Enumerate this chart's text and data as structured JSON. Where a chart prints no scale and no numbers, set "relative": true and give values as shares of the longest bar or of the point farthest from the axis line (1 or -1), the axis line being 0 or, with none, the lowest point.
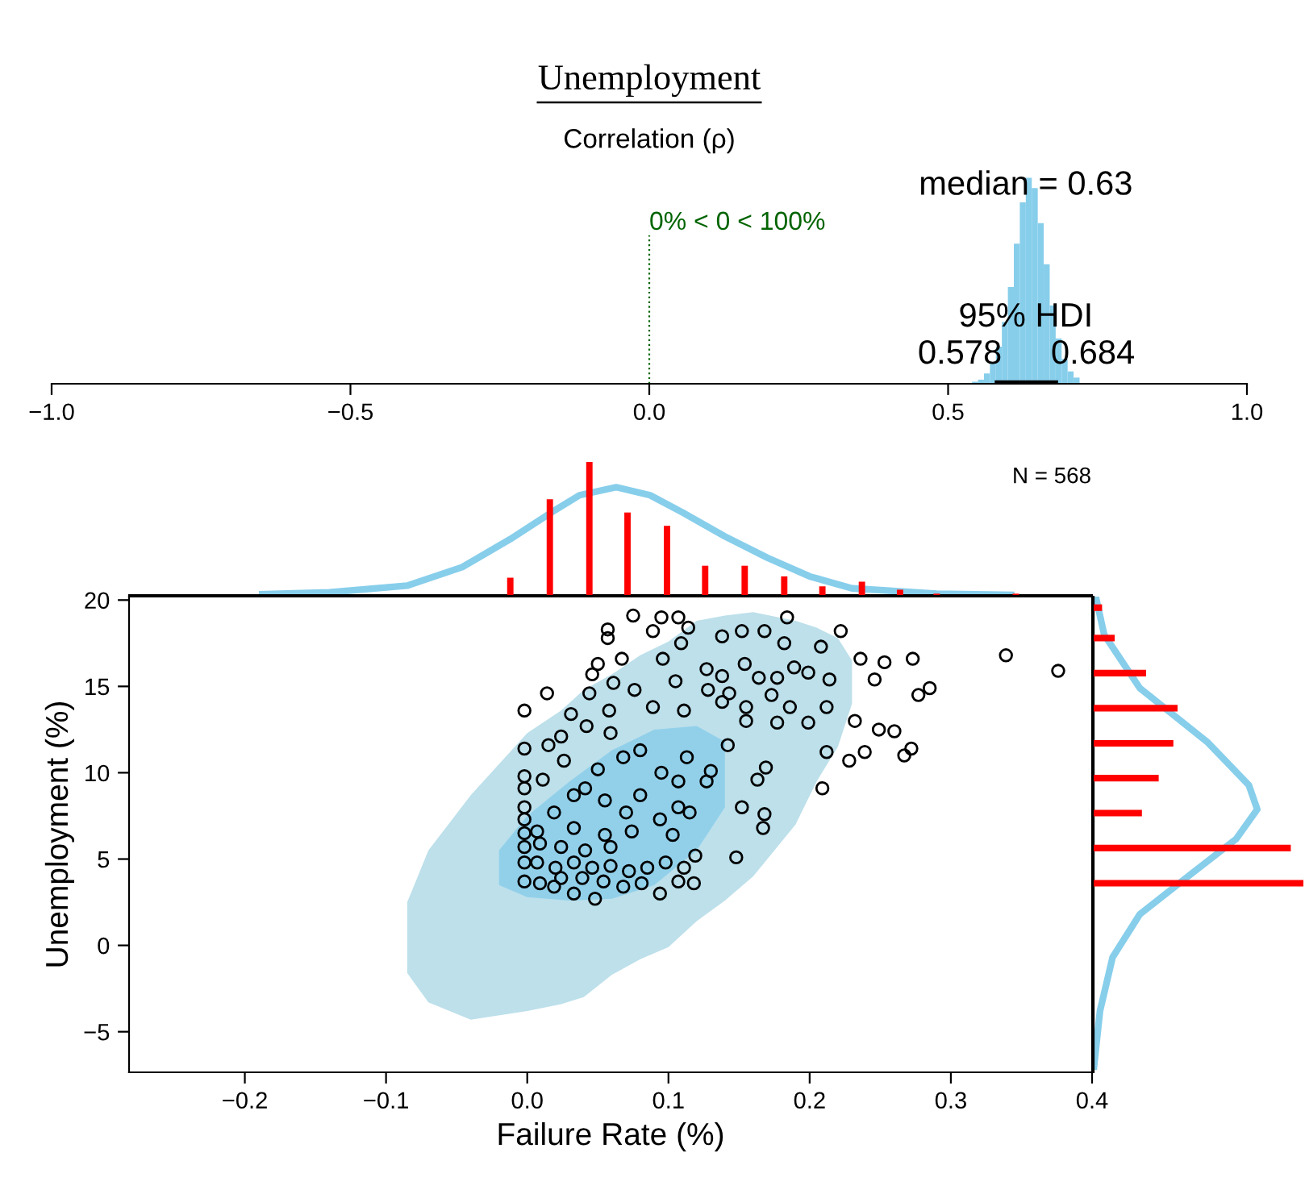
{
  "chart_data": [
    {
      "type": "bar",
      "title": "Unemployment",
      "subtitle": "Correlation (ρ)",
      "relative": true,
      "xlim": [
        -1,
        1
      ],
      "xticks": [
        {
          "value": -1,
          "label": "−1.0"
        },
        {
          "value": -0.5,
          "label": "−0.5"
        },
        {
          "value": 0,
          "label": "0.0"
        },
        {
          "value": 0.5,
          "label": "0.5"
        },
        {
          "value": 1,
          "label": "1.0"
        }
      ],
      "series": [
        {
          "color": "#87ceeb",
          "x": [
            0.545,
            0.555,
            0.565,
            0.575,
            0.585,
            0.595,
            0.605,
            0.615,
            0.625,
            0.635,
            0.645,
            0.655,
            0.665,
            0.675,
            0.685,
            0.695,
            0.705,
            0.715
          ],
          "values": [
            0.01,
            0.02,
            0.05,
            0.1,
            0.18,
            0.3,
            0.47,
            0.68,
            0.88,
            1,
            0.95,
            0.78,
            0.58,
            0.38,
            0.22,
            0.12,
            0.06,
            0.03
          ]
        },
        {
          "type": "line",
          "color": "#000000",
          "x": [
            0.578,
            0.684
          ],
          "values": [
            0,
            0
          ]
        }
      ],
      "annotations": [
        {
          "text": "median = 0.63",
          "x": 0.63,
          "y": 0.96
        },
        {
          "text": "95% HDI",
          "x": 0.63,
          "y": 0.32
        },
        {
          "text": "0.578",
          "x": 0.578,
          "y": 0.14
        },
        {
          "text": "0.684",
          "x": 0.684,
          "y": 0.14
        }
      ],
      "ref_lines": [
        {
          "axis": "x",
          "value": 0,
          "label": "0% < 0 < 100%",
          "color": "#006400",
          "line_style": "dotted"
        }
      ]
    },
    {
      "type": "bar",
      "relative": true,
      "xlim": [
        -0.282,
        0.4
      ],
      "tick_labels": false,
      "series": [
        {
          "type": "line",
          "color": "#87ceeb",
          "x": [
            -0.19,
            -0.14,
            -0.085,
            -0.046,
            -0.012,
            0.017,
            0.037,
            0.063,
            0.087,
            0.11,
            0.14,
            0.17,
            0.2,
            0.23,
            0.29,
            0.345
          ],
          "values": [
            0.005,
            0.02,
            0.07,
            0.21,
            0.42,
            0.62,
            0.75,
            0.81,
            0.75,
            0.62,
            0.44,
            0.28,
            0.14,
            0.05,
            0.01,
            0
          ]
        },
        {
          "color": "#ff0000",
          "x": [
            -0.012,
            0.016,
            0.044,
            0.071,
            0.099,
            0.126,
            0.154,
            0.182,
            0.209,
            0.237,
            0.264,
            0.29,
            0.346
          ],
          "values": [
            0.13,
            0.72,
            1,
            0.62,
            0.52,
            0.22,
            0.22,
            0.14,
            0.065,
            0.1,
            0.04,
            0.01,
            0.01
          ]
        }
      ]
    },
    {
      "type": "scatter",
      "xlabel": "Failure Rate (%)",
      "ylabel": "Unemployment (%)",
      "annotations": [
        "N = 568"
      ],
      "xlim": [
        -0.282,
        0.4
      ],
      "ylim": [
        -7.35,
        20.2
      ],
      "xticks": [
        {
          "value": -0.2,
          "label": "−0.2"
        },
        {
          "value": -0.1,
          "label": "−0.1"
        },
        {
          "value": 0,
          "label": "0.0"
        },
        {
          "value": 0.1,
          "label": "0.1"
        },
        {
          "value": 0.2,
          "label": "0.2"
        },
        {
          "value": 0.3,
          "label": "0.3"
        },
        {
          "value": 0.4,
          "label": "0.4"
        }
      ],
      "yticks": [
        {
          "value": -5,
          "label": "−5"
        },
        0,
        5,
        10,
        15,
        20
      ],
      "series": [
        {
          "type": "line",
          "color": "#bde0eb",
          "x": [
            -0.085,
            -0.07,
            -0.04,
            0.0,
            0.024,
            0.04,
            0.06,
            0.08,
            0.1,
            0.12,
            0.14,
            0.16,
            0.19,
            0.205,
            0.22,
            0.23
          ],
          "lower": [
            -1.6,
            -3.3,
            -4.3,
            -3.8,
            -3.4,
            -3.0,
            -1.7,
            -0.8,
            -0.1,
            1.4,
            2.6,
            4.0,
            7.0,
            9.5,
            11.5,
            14.0
          ],
          "upper": [
            2.5,
            5.5,
            8.7,
            12.3,
            13.6,
            14.8,
            15.7,
            16.8,
            17.6,
            18.8,
            19.1,
            19.3,
            18.8,
            18.4,
            17.8,
            16.5
          ],
          "values": [
            null,
            null,
            null,
            null,
            null,
            null,
            null,
            null,
            null,
            null,
            null,
            null,
            null,
            null,
            null,
            null
          ]
        },
        {
          "type": "line",
          "color": "#92d0ea",
          "x": [
            -0.02,
            0.0,
            0.03,
            0.06,
            0.09,
            0.12,
            0.14
          ],
          "lower": [
            3.5,
            2.8,
            2.6,
            2.7,
            3.5,
            5.5,
            8.0
          ],
          "upper": [
            5.5,
            7.5,
            9.5,
            11.3,
            12.5,
            12.7,
            11.8
          ],
          "values": [
            null,
            null,
            null,
            null,
            null,
            null,
            null
          ]
        },
        {
          "marker": "circle",
          "color": "#000000",
          "x": [
            0.075,
            0.095,
            0.107,
            0.057,
            0.057,
            0.089,
            0.114,
            0.184,
            0.222,
            0.152,
            0.168,
            0.339,
            0.376,
            0.273,
            0.285,
            0.277,
            0.253,
            0.236,
            0.246,
            0.214,
            0.199,
            0.189,
            0.177,
            0.164,
            0.154,
            0.127,
            0.138,
            0.105,
            0.05,
            0.067,
            0.046,
            0.014,
            -0.002,
            0.061,
            0.076,
            0.044,
            0.031,
            0.042,
            0.058,
            0.059,
            0.089,
            0.111,
            0.128,
            0.143,
            0.155,
            0.186,
            0.212,
            0.232,
            0.249,
            0.26,
            0.272,
            0.267,
            0.239,
            0.228,
            0.212,
            0.209,
            0.163,
            0.152,
            0.168,
            0.167,
            0.148,
            0.169,
            0.142,
            0.13,
            0.113,
            0.107,
            0.095,
            0.08,
            0.068,
            0.05,
            0.033,
            0.019,
            -0.002,
            -0.002,
            -0.002,
            -0.002,
            -0.002,
            -0.002,
            -0.002,
            -0.002,
            0.015,
            0.011,
            0.026,
            0.041,
            0.055,
            0.07,
            0.08,
            0.094,
            0.107,
            0.115,
            0.127,
            0.103,
            0.074,
            0.055,
            0.033,
            0.009,
            0.024,
            0.007,
            0.02,
            0.033,
            0.046,
            0.059,
            0.072,
            0.085,
            0.098,
            0.111,
            0.119,
            0.118,
            0.107,
            0.094,
            0.081,
            0.068,
            0.048,
            0.033,
            0.019,
            0.009,
            0.039,
            0.054,
            0.024,
            0.041,
            0.059,
            0.007,
            0.199,
            0.177,
            0.155,
            0.138,
            0.173,
            0.208,
            0.182,
            0.138,
            0.109,
            0.096,
            -0.002,
            0.024
          ],
          "values": [
            19.1,
            19.0,
            19.0,
            18.3,
            17.8,
            18.2,
            18.4,
            19.0,
            18.2,
            18.2,
            18.2,
            16.8,
            15.9,
            16.6,
            14.9,
            14.5,
            16.4,
            16.6,
            15.4,
            15.4,
            15.8,
            16.1,
            15.5,
            15.5,
            16.3,
            16.0,
            15.6,
            15.3,
            16.3,
            16.6,
            15.7,
            14.6,
            13.6,
            15.2,
            14.8,
            14.6,
            13.4,
            12.7,
            13.6,
            12.3,
            13.8,
            13.6,
            14.8,
            14.6,
            13.0,
            13.8,
            13.8,
            13.0,
            12.5,
            12.4,
            11.4,
            11.0,
            11.2,
            10.7,
            11.2,
            9.1,
            9.6,
            8.0,
            7.6,
            6.8,
            5.1,
            10.3,
            11.6,
            10.1,
            10.9,
            9.5,
            10.0,
            11.3,
            10.9,
            10.2,
            8.7,
            7.7,
            9.8,
            9.1,
            8.0,
            7.3,
            6.5,
            5.7,
            4.8,
            3.7,
            11.6,
            9.6,
            10.7,
            9.1,
            8.4,
            7.7,
            8.7,
            7.3,
            8.0,
            7.7,
            9.5,
            6.4,
            6.6,
            6.4,
            6.8,
            5.9,
            5.7,
            4.8,
            4.5,
            4.8,
            4.5,
            4.6,
            4.3,
            4.5,
            4.8,
            4.5,
            5.2,
            3.6,
            3.7,
            3.0,
            3.6,
            3.4,
            2.7,
            3.0,
            3.4,
            3.6,
            3.9,
            3.7,
            3.9,
            5.5,
            5.7,
            6.6,
            12.9,
            12.9,
            13.8,
            14.1,
            14.5,
            17.3,
            17.5,
            17.9,
            17.5,
            16.6,
            11.4,
            12.1
          ]
        }
      ]
    },
    {
      "type": "bar",
      "orientation": "horizontal",
      "relative": true,
      "ylim": [
        -7.35,
        20.2
      ],
      "tick_labels": false,
      "series": [
        {
          "type": "line",
          "color": "#87ceeb",
          "x": [
            20.2,
            18.0,
            14.9,
            11.8,
            9.28,
            7.88,
            6.17,
            4.0,
            1.8,
            -0.7,
            -3.8,
            -7.2
          ],
          "values": [
            0.01,
            0.05,
            0.22,
            0.54,
            0.74,
            0.78,
            0.68,
            0.45,
            0.22,
            0.09,
            0.03,
            0
          ]
        },
        {
          "color": "#ff0000",
          "x": [
            19.56,
            17.8,
            15.77,
            13.74,
            11.7,
            9.69,
            7.66,
            5.64,
            3.6
          ],
          "values": [
            0.04,
            0.1,
            0.25,
            0.4,
            0.38,
            0.31,
            0.23,
            0.94,
            1
          ]
        }
      ]
    }
  ]
}
